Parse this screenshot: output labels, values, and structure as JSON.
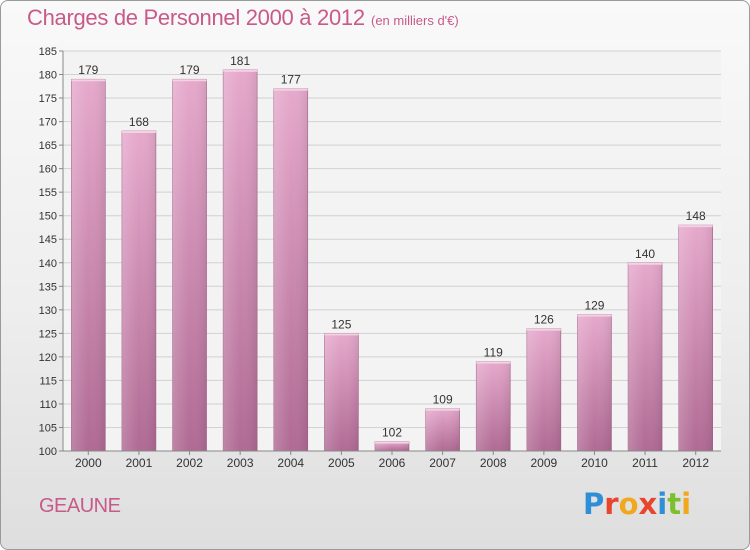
{
  "header": {
    "title": "Charges de Personnel 2000 à 2012",
    "subtitle": "(en milliers d'€)"
  },
  "footer": {
    "place": "GEAUNE",
    "logo": [
      {
        "ch": "P",
        "color": "#2f8fd6"
      },
      {
        "ch": "r",
        "color": "#e8452e"
      },
      {
        "ch": "o",
        "color": "#f2a81d"
      },
      {
        "ch": "x",
        "color": "#e8452e"
      },
      {
        "ch": "i",
        "color": "#2f8fd6"
      },
      {
        "ch": "t",
        "color": "#7cbf2f"
      },
      {
        "ch": "i",
        "color": "#f2a81d"
      }
    ]
  },
  "colors": {
    "accent": "#c85a88",
    "bar_light": "#e6a9cc",
    "bar_dark": "#b06a94",
    "grid": "#d2d2d2",
    "text": "#333333"
  },
  "chart_data": {
    "type": "bar",
    "title": "Charges de Personnel 2000 à 2012",
    "subtitle": "(en milliers d'€)",
    "categories": [
      "2000",
      "2001",
      "2002",
      "2003",
      "2004",
      "2005",
      "2006",
      "2007",
      "2008",
      "2009",
      "2010",
      "2011",
      "2012"
    ],
    "values": [
      179,
      168,
      179,
      181,
      177,
      125,
      102,
      109,
      119,
      126,
      129,
      140,
      148
    ],
    "ylim": [
      100,
      185
    ],
    "yticks": [
      100,
      105,
      110,
      115,
      120,
      125,
      130,
      135,
      140,
      145,
      150,
      155,
      160,
      165,
      170,
      175,
      180,
      185
    ],
    "grid": true,
    "data_labels": true
  }
}
